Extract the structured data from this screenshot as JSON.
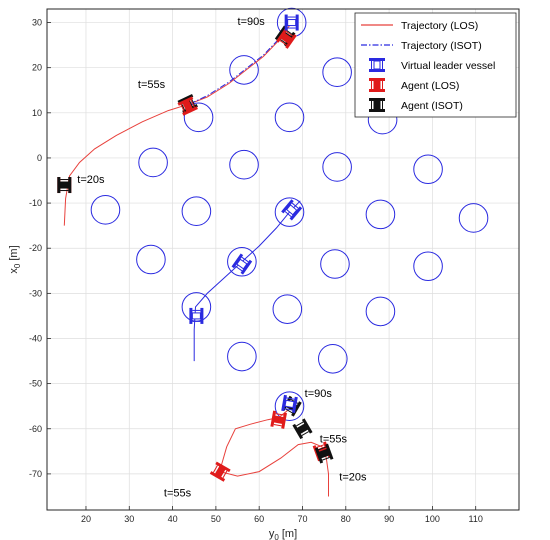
{
  "chart_data": {
    "type": "line",
    "xlabel_base": "y",
    "xlabel_sub": "0",
    "xlabel_unit": " [m]",
    "ylabel_base": "x",
    "ylabel_sub": "0",
    "ylabel_unit": " [m]",
    "xlim": [
      11,
      120
    ],
    "ylim": [
      -78,
      33
    ],
    "xticks": [
      20,
      30,
      40,
      50,
      60,
      70,
      80,
      90,
      100,
      110
    ],
    "yticks": [
      30,
      20,
      10,
      0,
      -10,
      -20,
      -30,
      -40,
      -50,
      -60,
      -70
    ],
    "grid": true,
    "legend_position": "top-right",
    "legend": [
      {
        "label": "Trajectory (LOS)",
        "kind": "line",
        "color": "#e8413c"
      },
      {
        "label": "Trajectory (ISOT)",
        "kind": "dashdot",
        "color": "#2a2ae0"
      },
      {
        "label": "Virtual leader vessel",
        "kind": "vessel",
        "color": "#2a2ae0"
      },
      {
        "label": "Agent (LOS)",
        "kind": "vessel",
        "color": "#e01b1b"
      },
      {
        "label": "Agent (ISOT)",
        "kind": "vessel",
        "color": "#111111"
      }
    ],
    "obstacles": [
      {
        "x": 67.5,
        "y": 30
      },
      {
        "x": 56.5,
        "y": 19.5
      },
      {
        "x": 78,
        "y": 19
      },
      {
        "x": 46,
        "y": 9
      },
      {
        "x": 67,
        "y": 9
      },
      {
        "x": 88.5,
        "y": 8.5
      },
      {
        "x": 35.5,
        "y": -1
      },
      {
        "x": 56.5,
        "y": -1.5
      },
      {
        "x": 78,
        "y": -2
      },
      {
        "x": 99,
        "y": -2.5
      },
      {
        "x": 24.5,
        "y": -11.5
      },
      {
        "x": 45.5,
        "y": -11.8
      },
      {
        "x": 67,
        "y": -12
      },
      {
        "x": 88,
        "y": -12.5
      },
      {
        "x": 109.5,
        "y": -13.3
      },
      {
        "x": 35,
        "y": -22.5
      },
      {
        "x": 56,
        "y": -23
      },
      {
        "x": 77.5,
        "y": -23.5
      },
      {
        "x": 99,
        "y": -24
      },
      {
        "x": 45.5,
        "y": -33
      },
      {
        "x": 66.5,
        "y": -33.5
      },
      {
        "x": 88,
        "y": -34
      },
      {
        "x": 56,
        "y": -44
      },
      {
        "x": 77,
        "y": -44.5
      },
      {
        "x": 67,
        "y": -55
      }
    ],
    "obstacle_radius": 3.3,
    "series": [
      {
        "style": "line",
        "color": "#e8413c",
        "points": [
          [
            15,
            -15
          ],
          [
            15.3,
            -9
          ],
          [
            16.2,
            -4
          ],
          [
            18.5,
            -1
          ],
          [
            22,
            2
          ],
          [
            27,
            5
          ],
          [
            33,
            8
          ],
          [
            39,
            10.5
          ],
          [
            44,
            12
          ],
          [
            48,
            13.5
          ],
          [
            53,
            16.5
          ],
          [
            57,
            19.5
          ],
          [
            61,
            22.5
          ],
          [
            64.5,
            26
          ],
          [
            66,
            28
          ],
          [
            67.5,
            30
          ]
        ]
      },
      {
        "style": "dashdot",
        "color": "#2a2ae0",
        "points": [
          [
            44,
            12
          ],
          [
            48,
            13.8
          ],
          [
            53,
            16.8
          ],
          [
            57,
            19.8
          ],
          [
            61,
            22.8
          ],
          [
            64.5,
            26.3
          ]
        ]
      },
      {
        "style": "line",
        "color": "#2a2ae0",
        "points": [
          [
            45,
            -45
          ],
          [
            45,
            -38
          ],
          [
            45.3,
            -33
          ],
          [
            48,
            -30
          ],
          [
            52,
            -26.5
          ],
          [
            56,
            -23
          ],
          [
            60,
            -19.5
          ],
          [
            64,
            -15.5
          ],
          [
            67,
            -12
          ],
          [
            69.5,
            -9.5
          ]
        ]
      },
      {
        "style": "line",
        "color": "#e8413c",
        "points": [
          [
            51,
            -69
          ],
          [
            52.5,
            -64
          ],
          [
            54.5,
            -60
          ],
          [
            58,
            -59
          ],
          [
            62,
            -58
          ],
          [
            64.5,
            -57.5
          ],
          [
            66.5,
            -56
          ]
        ]
      },
      {
        "style": "line",
        "color": "#e8413c",
        "points": [
          [
            51,
            -69.5
          ],
          [
            55,
            -70.5
          ],
          [
            60,
            -69.5
          ],
          [
            65,
            -66.5
          ],
          [
            69,
            -63.5
          ],
          [
            72,
            -63
          ],
          [
            74.5,
            -64
          ],
          [
            75.5,
            -66.5
          ],
          [
            76,
            -70
          ],
          [
            76,
            -75
          ]
        ]
      }
    ],
    "vessels": [
      {
        "x": 15,
        "y": -6,
        "angle": 0,
        "kind": "los"
      },
      {
        "x": 15,
        "y": -6,
        "angle": 0,
        "kind": "isot"
      },
      {
        "x": 43.5,
        "y": 12,
        "angle": 65,
        "kind": "isot"
      },
      {
        "x": 43.5,
        "y": 11.5,
        "angle": 65,
        "kind": "los"
      },
      {
        "x": 66,
        "y": 27,
        "angle": 35,
        "kind": "isot"
      },
      {
        "x": 66.3,
        "y": 26.5,
        "angle": 35,
        "kind": "los"
      },
      {
        "x": 67.5,
        "y": 30,
        "angle": 0,
        "kind": "leader"
      },
      {
        "x": 45.5,
        "y": -35,
        "angle": 0,
        "kind": "leader"
      },
      {
        "x": 56,
        "y": -23.5,
        "angle": 35,
        "kind": "leader"
      },
      {
        "x": 67.5,
        "y": -11.5,
        "angle": 40,
        "kind": "leader"
      },
      {
        "x": 51,
        "y": -69.5,
        "angle": -60,
        "kind": "los"
      },
      {
        "x": 74.5,
        "y": -65,
        "angle": -20,
        "kind": "los"
      },
      {
        "x": 75,
        "y": -65.5,
        "angle": -20,
        "kind": "isot"
      },
      {
        "x": 70,
        "y": -60,
        "angle": -30,
        "kind": "isot"
      },
      {
        "x": 64.5,
        "y": -58,
        "angle": 10,
        "kind": "los"
      },
      {
        "x": 67.5,
        "y": -55,
        "angle": 30,
        "kind": "isot"
      },
      {
        "x": 67,
        "y": -54.5,
        "angle": 10,
        "kind": "leader"
      }
    ],
    "time_labels": [
      {
        "text": "t=90s",
        "x": 55,
        "y": 29.5
      },
      {
        "text": "t=55s",
        "x": 32,
        "y": 15.5
      },
      {
        "text": "t=20s",
        "x": 18,
        "y": -5.5
      },
      {
        "text": "t=90s",
        "x": 70.5,
        "y": -53
      },
      {
        "text": "t=55s",
        "x": 74,
        "y": -63
      },
      {
        "text": "t=20s",
        "x": 78.5,
        "y": -71.5
      },
      {
        "text": "t=55s",
        "x": 38,
        "y": -75
      }
    ],
    "colors": {
      "obstacle": "#2a2ae0",
      "grid": "#dedede",
      "axis": "#262626",
      "los_vessel": "#e01b1b",
      "isot_vessel": "#111111",
      "leader_vessel": "#2a2ae0"
    }
  }
}
